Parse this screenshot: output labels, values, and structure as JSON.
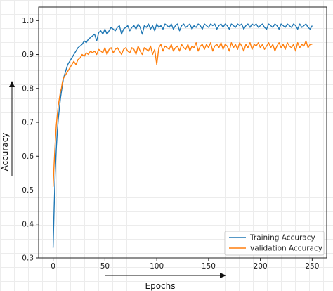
{
  "chart_data": {
    "type": "line",
    "title": "",
    "xlabel": "Epochs",
    "ylabel": "Accuracy",
    "xlim": [
      -14,
      264
    ],
    "ylim": [
      0.3,
      1.04
    ],
    "xticks": [
      0,
      50,
      100,
      150,
      200,
      250
    ],
    "yticks": [
      0.3,
      0.4,
      0.5,
      0.6,
      0.7,
      0.8,
      0.9,
      1.0
    ],
    "xtick_labels": [
      "0",
      "50",
      "100",
      "150",
      "200",
      "250"
    ],
    "ytick_labels": [
      "0.3",
      "0.4",
      "0.5",
      "0.6",
      "0.7",
      "0.8",
      "0.9",
      "1.0"
    ],
    "grid": false,
    "legend_position": "lower right",
    "series": [
      {
        "name": "Training Accuracy",
        "color": "#1f77b4",
        "x": [
          0,
          1,
          2,
          3,
          4,
          5,
          6,
          7,
          8,
          9,
          10,
          12,
          14,
          16,
          18,
          20,
          22,
          24,
          26,
          28,
          30,
          32,
          34,
          36,
          38,
          40,
          42,
          44,
          46,
          48,
          50,
          52,
          54,
          56,
          58,
          60,
          62,
          64,
          66,
          68,
          70,
          72,
          74,
          76,
          78,
          80,
          82,
          84,
          86,
          88,
          90,
          92,
          94,
          96,
          98,
          100,
          102,
          104,
          106,
          108,
          110,
          112,
          114,
          116,
          118,
          120,
          122,
          124,
          126,
          128,
          130,
          132,
          134,
          136,
          138,
          140,
          142,
          144,
          146,
          148,
          150,
          152,
          154,
          156,
          158,
          160,
          162,
          164,
          166,
          168,
          170,
          172,
          174,
          176,
          178,
          180,
          182,
          184,
          186,
          188,
          190,
          192,
          194,
          196,
          198,
          200,
          202,
          204,
          206,
          208,
          210,
          212,
          214,
          216,
          218,
          220,
          222,
          224,
          226,
          228,
          230,
          232,
          234,
          236,
          238,
          240,
          242,
          244,
          246,
          248,
          250
        ],
        "values": [
          0.33,
          0.45,
          0.55,
          0.62,
          0.67,
          0.71,
          0.74,
          0.77,
          0.79,
          0.81,
          0.83,
          0.85,
          0.87,
          0.88,
          0.89,
          0.9,
          0.91,
          0.92,
          0.925,
          0.93,
          0.94,
          0.935,
          0.945,
          0.95,
          0.955,
          0.96,
          0.94,
          0.965,
          0.97,
          0.96,
          0.975,
          0.96,
          0.97,
          0.98,
          0.975,
          0.97,
          0.98,
          0.985,
          0.96,
          0.975,
          0.98,
          0.985,
          0.97,
          0.98,
          0.985,
          0.975,
          0.99,
          0.98,
          0.96,
          0.985,
          0.98,
          0.99,
          0.975,
          0.985,
          0.97,
          0.99,
          0.98,
          0.985,
          0.975,
          0.99,
          0.985,
          0.98,
          0.99,
          0.975,
          0.985,
          0.99,
          0.97,
          0.985,
          0.99,
          0.98,
          0.985,
          0.99,
          0.975,
          0.985,
          0.98,
          0.99,
          0.985,
          0.975,
          0.99,
          0.985,
          0.98,
          0.99,
          0.985,
          0.99,
          0.975,
          0.985,
          0.99,
          0.98,
          0.99,
          0.985,
          0.975,
          0.99,
          0.985,
          0.98,
          0.99,
          0.985,
          0.99,
          0.975,
          0.985,
          0.99,
          0.98,
          0.99,
          0.985,
          0.99,
          0.98,
          0.985,
          0.99,
          0.98,
          0.975,
          0.99,
          0.985,
          0.98,
          0.99,
          0.985,
          0.975,
          0.99,
          0.985,
          0.98,
          0.99,
          0.985,
          0.98,
          0.99,
          0.985,
          0.975,
          0.99,
          0.98,
          0.985,
          0.99,
          0.98,
          0.975,
          0.985
        ]
      },
      {
        "name": "validation Accuracy",
        "color": "#ff7f0e",
        "x": [
          0,
          1,
          2,
          3,
          4,
          5,
          6,
          7,
          8,
          9,
          10,
          12,
          14,
          16,
          18,
          20,
          22,
          24,
          26,
          28,
          30,
          32,
          34,
          36,
          38,
          40,
          42,
          44,
          46,
          48,
          50,
          52,
          54,
          56,
          58,
          60,
          62,
          64,
          66,
          68,
          70,
          72,
          74,
          76,
          78,
          80,
          82,
          84,
          86,
          88,
          90,
          92,
          94,
          96,
          98,
          100,
          102,
          104,
          106,
          108,
          110,
          112,
          114,
          116,
          118,
          120,
          122,
          124,
          126,
          128,
          130,
          132,
          134,
          136,
          138,
          140,
          142,
          144,
          146,
          148,
          150,
          152,
          154,
          156,
          158,
          160,
          162,
          164,
          166,
          168,
          170,
          172,
          174,
          176,
          178,
          180,
          182,
          184,
          186,
          188,
          190,
          192,
          194,
          196,
          198,
          200,
          202,
          204,
          206,
          208,
          210,
          212,
          214,
          216,
          218,
          220,
          222,
          224,
          226,
          228,
          230,
          232,
          234,
          236,
          238,
          240,
          242,
          244,
          246,
          248,
          250
        ],
        "values": [
          0.51,
          0.58,
          0.64,
          0.69,
          0.72,
          0.75,
          0.77,
          0.79,
          0.8,
          0.82,
          0.83,
          0.84,
          0.85,
          0.86,
          0.87,
          0.88,
          0.87,
          0.885,
          0.89,
          0.9,
          0.895,
          0.905,
          0.9,
          0.91,
          0.905,
          0.91,
          0.9,
          0.915,
          0.91,
          0.905,
          0.92,
          0.9,
          0.915,
          0.92,
          0.905,
          0.915,
          0.92,
          0.91,
          0.9,
          0.915,
          0.92,
          0.91,
          0.905,
          0.92,
          0.915,
          0.9,
          0.925,
          0.91,
          0.9,
          0.92,
          0.915,
          0.91,
          0.925,
          0.9,
          0.915,
          0.87,
          0.92,
          0.93,
          0.91,
          0.925,
          0.92,
          0.915,
          0.93,
          0.91,
          0.92,
          0.925,
          0.91,
          0.93,
          0.92,
          0.915,
          0.93,
          0.91,
          0.925,
          0.92,
          0.935,
          0.91,
          0.925,
          0.93,
          0.915,
          0.93,
          0.92,
          0.935,
          0.91,
          0.925,
          0.93,
          0.92,
          0.935,
          0.915,
          0.93,
          0.925,
          0.91,
          0.935,
          0.92,
          0.93,
          0.915,
          0.935,
          0.925,
          0.91,
          0.93,
          0.92,
          0.935,
          0.915,
          0.93,
          0.925,
          0.935,
          0.92,
          0.93,
          0.915,
          0.925,
          0.935,
          0.92,
          0.93,
          0.91,
          0.925,
          0.935,
          0.92,
          0.93,
          0.915,
          0.935,
          0.925,
          0.92,
          0.93,
          0.91,
          0.935,
          0.92,
          0.93,
          0.925,
          0.94,
          0.92,
          0.93,
          0.93
        ]
      }
    ]
  }
}
